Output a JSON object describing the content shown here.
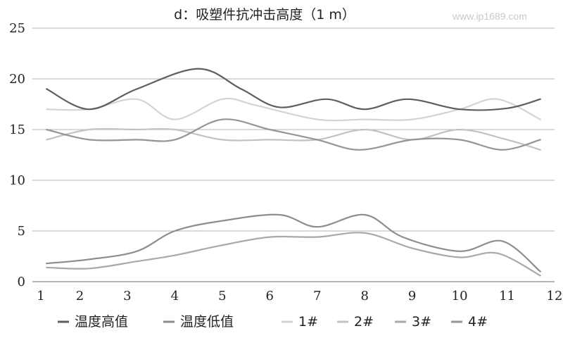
{
  "watermark": "www.ip1689.com",
  "chart_data": {
    "type": "line",
    "title": "d：吸塑件抗冲击高度（1 m）",
    "xlabel": "",
    "ylabel": "",
    "x": [
      1,
      2,
      3,
      4,
      5,
      6,
      7,
      8,
      9,
      10,
      11,
      12
    ],
    "x_ticks": [
      "1",
      "2",
      "3",
      "4",
      "5",
      "6",
      "7",
      "8",
      "9",
      "10",
      "11",
      "12"
    ],
    "xlim": [
      1,
      12
    ],
    "ylim": [
      0,
      25
    ],
    "y_ticks": [
      "0",
      "5",
      "10",
      "15",
      "20",
      "25"
    ],
    "y_tick_values": [
      0,
      5,
      10,
      15,
      20,
      25
    ],
    "grid": "horizontal",
    "legend_position": "bottom",
    "series": [
      {
        "name": "温度高值",
        "color": "#5e5e5e",
        "points": [
          [
            1.3,
            19
          ],
          [
            2.2,
            17
          ],
          [
            3.2,
            19
          ],
          [
            4.5,
            21
          ],
          [
            5.4,
            19
          ],
          [
            6.2,
            17.2
          ],
          [
            7.2,
            18
          ],
          [
            8,
            17
          ],
          [
            8.9,
            18
          ],
          [
            10,
            17
          ],
          [
            11,
            17.1
          ],
          [
            11.7,
            18
          ]
        ]
      },
      {
        "name": "温度低值",
        "color": "#8d8d8d",
        "points": [
          [
            1.3,
            1.8
          ],
          [
            2.2,
            2.2
          ],
          [
            3.2,
            3
          ],
          [
            4,
            5
          ],
          [
            5,
            6
          ],
          [
            6.2,
            6.6
          ],
          [
            7,
            5.4
          ],
          [
            8,
            6.6
          ],
          [
            8.8,
            4.4
          ],
          [
            10,
            3
          ],
          [
            10.9,
            4
          ],
          [
            11.7,
            1
          ]
        ]
      },
      {
        "name": "1#",
        "color": "#d4d4d4",
        "points": [
          [
            1.3,
            17
          ],
          [
            2.2,
            17
          ],
          [
            3.2,
            18
          ],
          [
            4,
            16
          ],
          [
            5,
            18
          ],
          [
            5.7,
            17.4
          ],
          [
            7,
            16
          ],
          [
            8,
            16
          ],
          [
            9,
            16
          ],
          [
            10,
            17
          ],
          [
            10.8,
            18
          ],
          [
            11.7,
            16
          ]
        ]
      },
      {
        "name": "2#",
        "color": "#c2c2c2",
        "points": [
          [
            1.3,
            14
          ],
          [
            2.2,
            15
          ],
          [
            3.2,
            15
          ],
          [
            4,
            15
          ],
          [
            5,
            14
          ],
          [
            6,
            14
          ],
          [
            7,
            14
          ],
          [
            8,
            15
          ],
          [
            9,
            14
          ],
          [
            10,
            15
          ],
          [
            11,
            14
          ],
          [
            11.7,
            13
          ]
        ]
      },
      {
        "name": "3#",
        "color": "#a9a9a9",
        "points": [
          [
            1.3,
            1.4
          ],
          [
            2.2,
            1.3
          ],
          [
            3.2,
            2
          ],
          [
            4,
            2.6
          ],
          [
            5,
            3.6
          ],
          [
            6,
            4.4
          ],
          [
            7,
            4.4
          ],
          [
            8,
            4.8
          ],
          [
            9,
            3.3
          ],
          [
            10,
            2.4
          ],
          [
            10.8,
            2.8
          ],
          [
            11.7,
            0.6
          ]
        ]
      },
      {
        "name": "4#",
        "color": "#959595",
        "points": [
          [
            1.3,
            15
          ],
          [
            2.2,
            14
          ],
          [
            3.2,
            14
          ],
          [
            4,
            14
          ],
          [
            5,
            16
          ],
          [
            6,
            15
          ],
          [
            7,
            14
          ],
          [
            7.9,
            13
          ],
          [
            9,
            14
          ],
          [
            10,
            14
          ],
          [
            10.9,
            13
          ],
          [
            11.7,
            14
          ]
        ]
      }
    ]
  }
}
